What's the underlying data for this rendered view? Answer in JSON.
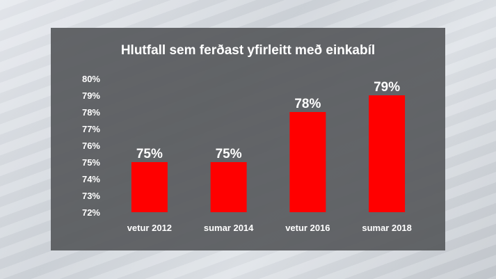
{
  "chart_data": {
    "type": "bar",
    "title": "Hlutfall sem ferðast yfirleitt með einkabíl",
    "categories": [
      "vetur 2012",
      "sumar 2014",
      "vetur 2016",
      "sumar 2018"
    ],
    "values": [
      75,
      75,
      78,
      79
    ],
    "data_labels": [
      "75%",
      "75%",
      "78%",
      "79%"
    ],
    "ylim": [
      72,
      80
    ],
    "yticks": [
      72,
      73,
      74,
      75,
      76,
      77,
      78,
      79,
      80
    ],
    "ytick_labels": [
      "72%",
      "73%",
      "74%",
      "75%",
      "76%",
      "77%",
      "78%",
      "79%",
      "80%"
    ],
    "xlabel": "",
    "ylabel": "",
    "grid": false,
    "bar_color": "#ff0000",
    "panel_color": "#58595e"
  }
}
